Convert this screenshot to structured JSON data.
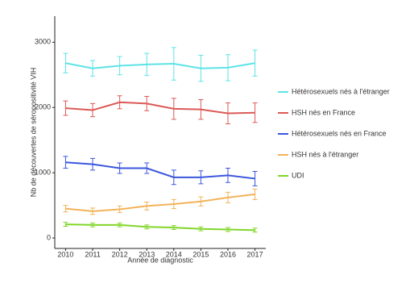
{
  "chart_data": {
    "type": "line",
    "x_label": "Année de diagnostic",
    "y_label": "Nb de découvertes de séropositivité VIH",
    "x": [
      2010,
      2011,
      2012,
      2013,
      2014,
      2015,
      2016,
      2017
    ],
    "xlim": [
      2009.6,
      2017.4
    ],
    "xticks": [
      2010,
      2011,
      2012,
      2013,
      2014,
      2015,
      2016,
      2017
    ],
    "ylim": [
      -160,
      3400
    ],
    "yticks": [
      0,
      1000,
      2000,
      3000
    ],
    "legend": "right",
    "series": [
      {
        "name": "Hétérosexuels nés à l'étranger",
        "color": "#5fe3e6",
        "values": [
          2680,
          2600,
          2640,
          2660,
          2670,
          2600,
          2610,
          2680
        ],
        "errors": [
          150,
          120,
          140,
          170,
          250,
          200,
          200,
          200
        ]
      },
      {
        "name": "HSH nés en France",
        "color": "#db5a56",
        "values": [
          1990,
          1960,
          2080,
          2060,
          1980,
          1970,
          1910,
          1920
        ],
        "errors": [
          110,
          100,
          100,
          110,
          160,
          150,
          160,
          150
        ]
      },
      {
        "name": "Hétérosexuels nés en France",
        "color": "#3b57dc",
        "values": [
          1160,
          1130,
          1070,
          1070,
          930,
          930,
          960,
          910
        ],
        "errors": [
          90,
          90,
          80,
          80,
          110,
          100,
          110,
          110
        ]
      },
      {
        "name": "HSH nés à l'étranger",
        "color": "#f2b35a",
        "values": [
          450,
          410,
          440,
          490,
          520,
          560,
          620,
          670
        ],
        "errors": [
          50,
          50,
          50,
          60,
          70,
          70,
          80,
          80
        ]
      },
      {
        "name": "UDI",
        "color": "#82d62a",
        "values": [
          210,
          200,
          200,
          170,
          160,
          140,
          130,
          120
        ],
        "errors": [
          30,
          30,
          30,
          30,
          30,
          30,
          30,
          30
        ]
      }
    ]
  }
}
